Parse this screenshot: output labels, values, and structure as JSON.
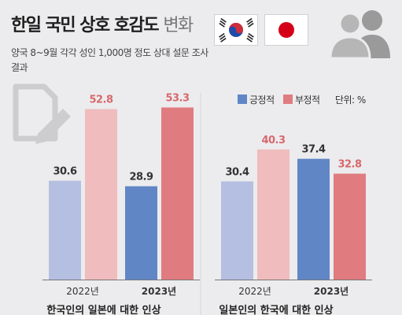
{
  "header": {
    "title_bold": "한일 국민 상호 호감도",
    "title_light": "변화",
    "subtitle": "양국 8~9월 각각 성인 1,000명 정도 상대 설문 조사 결과"
  },
  "icons": {
    "flag_kr": "south-korea-flag-icon",
    "flag_jp": "japan-flag-icon",
    "people": "people-icon",
    "document": "document-edit-icon"
  },
  "legend": {
    "positive": "긍정적",
    "negative": "부정적",
    "unit": "단위: %"
  },
  "colors": {
    "positive_2022": "#b5bfe1",
    "negative_2022": "#f0bcbd",
    "positive_2023": "#6186c6",
    "negative_2023": "#e07c80",
    "value_positive": "#333333",
    "value_negative": "#d8686c",
    "background": "#ececee"
  },
  "chart_data": [
    {
      "type": "bar",
      "caption": "한국인의 일본에 대한 인상",
      "categories": [
        "2022년",
        "2023년"
      ],
      "series": [
        {
          "name": "긍정적",
          "values": [
            30.6,
            28.9
          ]
        },
        {
          "name": "부정적",
          "values": [
            52.8,
            53.3
          ]
        }
      ],
      "ylim": [
        0,
        60
      ]
    },
    {
      "type": "bar",
      "caption": "일본인의 한국에 대한 인상",
      "categories": [
        "2022년",
        "2023년"
      ],
      "series": [
        {
          "name": "긍정적",
          "values": [
            30.4,
            37.4
          ]
        },
        {
          "name": "부정적",
          "values": [
            40.3,
            32.8
          ]
        }
      ],
      "ylim": [
        0,
        60
      ]
    }
  ]
}
